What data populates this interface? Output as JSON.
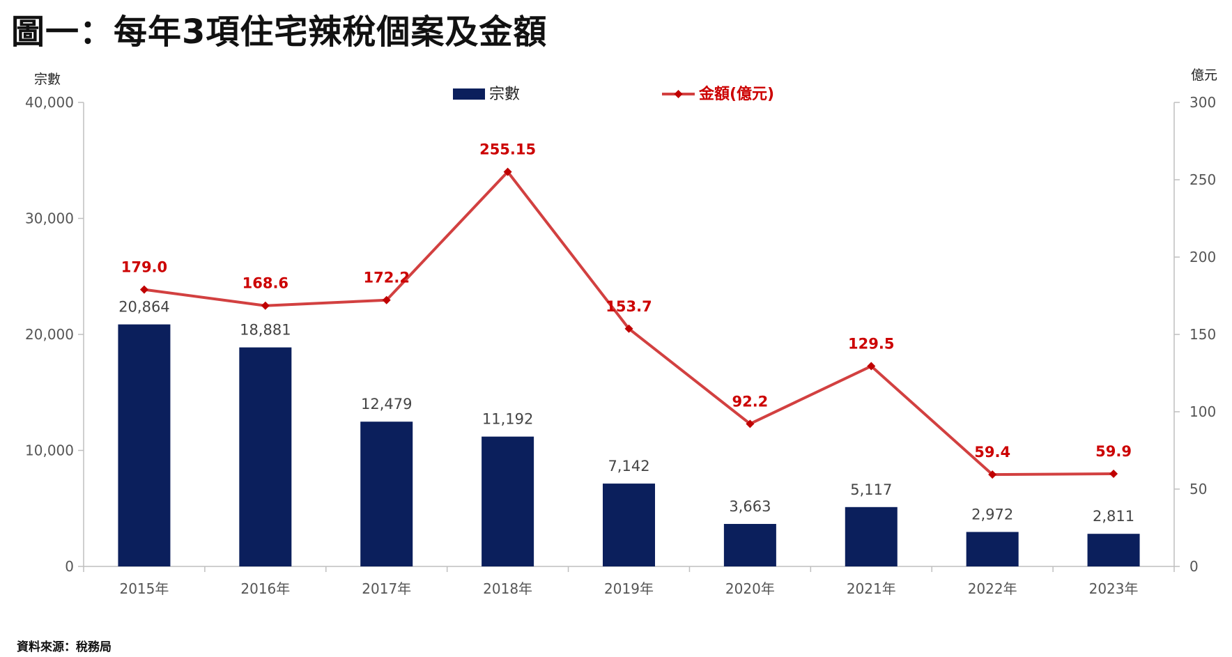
{
  "title": "圖一：每年3項住宅辣稅個案及金額",
  "source": "資料來源：稅務局",
  "colors": {
    "bars": "#0b1f5c",
    "line": "#d24040",
    "line_labels": "#cc0000",
    "axis": "#555555",
    "grid": "#d9d9d9"
  },
  "chart_data": {
    "type": "bar",
    "categories": [
      "2015年",
      "2016年",
      "2017年",
      "2018年",
      "2019年",
      "2020年",
      "2021年",
      "2022年",
      "2023年"
    ],
    "series": [
      {
        "name": "宗數",
        "type": "bar",
        "axis": "left",
        "values": [
          20864,
          18881,
          12479,
          11192,
          7142,
          3663,
          5117,
          2972,
          2811
        ],
        "labels": [
          "20,864",
          "18,881",
          "12,479",
          "11,192",
          "7,142",
          "3,663",
          "5,117",
          "2,972",
          "2,811"
        ]
      },
      {
        "name": "金額(億元)",
        "type": "line",
        "axis": "right",
        "marker": "diamond",
        "values": [
          179.0,
          168.6,
          172.2,
          255.15,
          153.7,
          92.2,
          129.5,
          59.4,
          59.9
        ],
        "labels": [
          "179.0",
          "168.6",
          "172.2",
          "255.15",
          "153.7",
          "92.2",
          "129.5",
          "59.4",
          "59.9"
        ]
      }
    ],
    "ylabel_left": "宗數",
    "ylabel_right": "億元",
    "ylim_left": [
      0,
      40000
    ],
    "ylim_right": [
      0,
      300
    ],
    "yticks_left": [
      "0",
      "10,000",
      "20,000",
      "30,000",
      "40,000"
    ],
    "yticks_right": [
      "0",
      "50",
      "100",
      "150",
      "200",
      "250",
      "300"
    ],
    "grid": false,
    "legend": "top-center"
  }
}
